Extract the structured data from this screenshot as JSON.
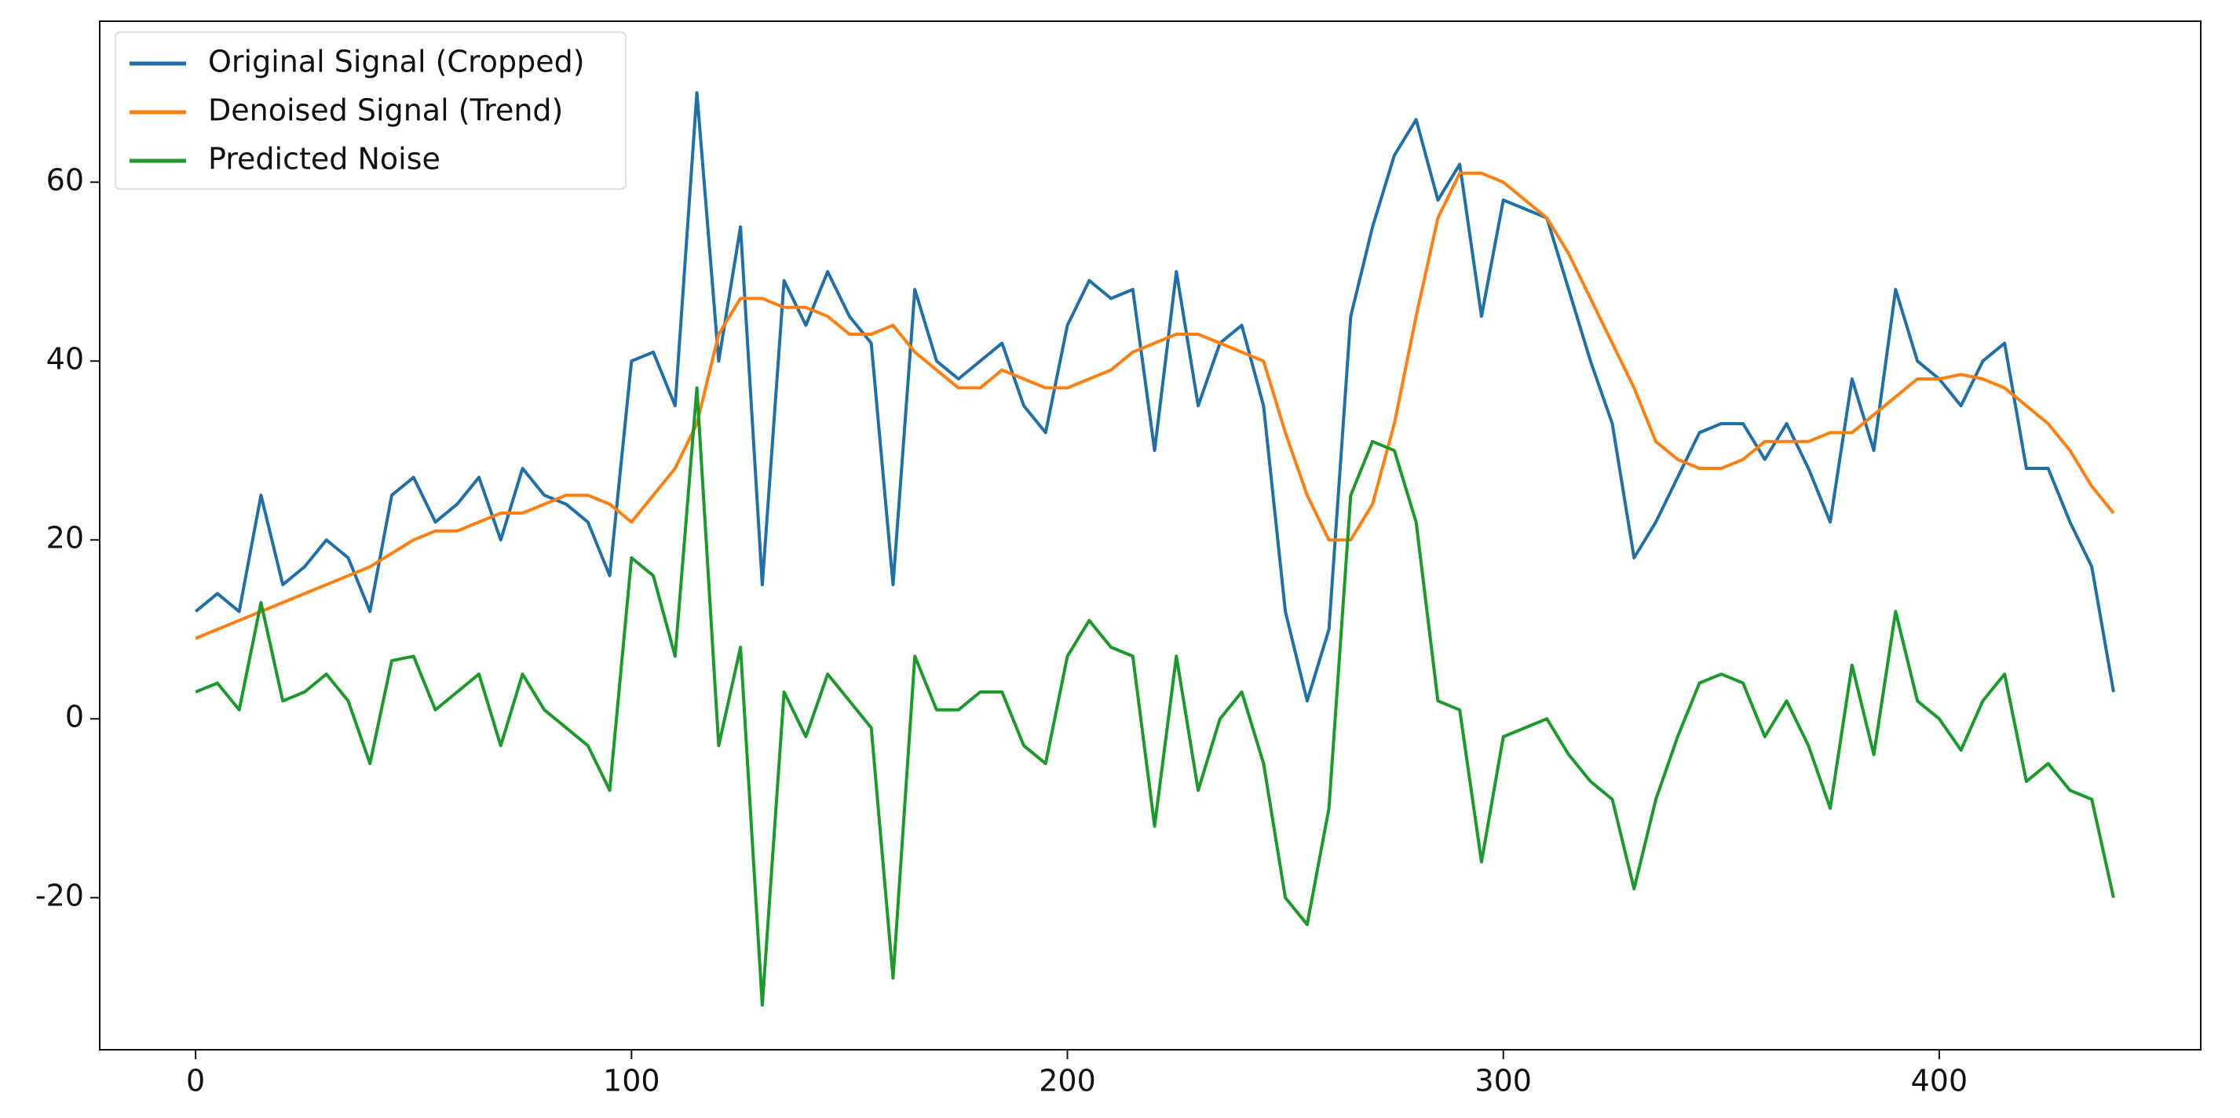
{
  "chart_data": {
    "type": "line",
    "x": [
      0,
      5,
      10,
      15,
      20,
      25,
      30,
      35,
      40,
      45,
      50,
      55,
      60,
      65,
      70,
      75,
      80,
      85,
      90,
      95,
      100,
      105,
      110,
      115,
      120,
      125,
      130,
      135,
      140,
      145,
      150,
      155,
      160,
      165,
      170,
      175,
      180,
      185,
      190,
      195,
      200,
      205,
      210,
      215,
      220,
      225,
      230,
      235,
      240,
      245,
      250,
      255,
      260,
      265,
      270,
      275,
      280,
      285,
      290,
      295,
      300,
      305,
      310,
      315,
      320,
      325,
      330,
      335,
      340,
      345,
      350,
      355,
      360,
      365,
      370,
      375,
      380,
      385,
      390,
      395,
      400,
      405,
      410,
      415,
      420,
      425,
      430,
      435,
      440
    ],
    "series": [
      {
        "name": "Original Signal (Cropped)",
        "color": "#1f6fa8",
        "values": [
          12,
          14,
          12,
          25,
          15,
          17,
          20,
          18,
          12,
          25,
          27,
          22,
          24,
          27,
          20,
          28,
          25,
          24,
          22,
          16,
          40,
          41,
          35,
          70,
          40,
          55,
          15,
          49,
          44,
          50,
          45,
          42,
          15,
          48,
          40,
          38,
          40,
          42,
          35,
          32,
          44,
          49,
          47,
          48,
          30,
          50,
          35,
          42,
          44,
          35,
          12,
          2,
          10,
          45,
          55,
          63,
          67,
          58,
          62,
          45,
          58,
          57,
          56,
          48,
          40,
          33,
          18,
          22,
          27,
          32,
          33,
          33,
          29,
          33,
          28,
          22,
          38,
          30,
          48,
          40,
          38,
          35,
          40,
          42,
          28,
          28,
          22,
          17,
          3
        ]
      },
      {
        "name": "Denoised Signal (Trend)",
        "color": "#ff7f0e",
        "values": [
          9,
          10,
          11,
          12,
          13,
          14,
          15,
          16,
          17,
          18.5,
          20,
          21,
          21,
          22,
          23,
          23,
          24,
          25,
          25,
          24,
          22,
          25,
          28,
          33,
          43,
          47,
          47,
          46,
          46,
          45,
          43,
          43,
          44,
          41,
          39,
          37,
          37,
          39,
          38,
          37,
          37,
          38,
          39,
          41,
          42,
          43,
          43,
          42,
          41,
          40,
          32,
          25,
          20,
          20,
          24,
          33,
          45,
          56,
          61,
          61,
          60,
          58,
          56,
          52,
          47,
          42,
          37,
          31,
          29,
          28,
          28,
          29,
          31,
          31,
          31,
          32,
          32,
          34,
          36,
          38,
          38,
          38.5,
          38,
          37,
          35,
          33,
          30,
          26,
          23
        ]
      },
      {
        "name": "Predicted Noise",
        "color": "#1a9a2a",
        "values": [
          3,
          4,
          1,
          13,
          2,
          3,
          5,
          2,
          -5,
          6.5,
          7,
          1,
          3,
          5,
          -3,
          5,
          1,
          -1,
          -3,
          -8,
          18,
          16,
          7,
          37,
          -3,
          8,
          -32,
          3,
          -2,
          5,
          2,
          -1,
          -29,
          7,
          1,
          1,
          3,
          3,
          -3,
          -5,
          7,
          11,
          8,
          7,
          -12,
          7,
          -8,
          0,
          3,
          -5,
          -20,
          -23,
          -10,
          25,
          31,
          30,
          22,
          2,
          1,
          -16,
          -2,
          -1,
          0,
          -4,
          -7,
          -9,
          -19,
          -9,
          -2,
          4,
          5,
          4,
          -2,
          2,
          -3,
          -10,
          6,
          -4,
          12,
          2,
          0,
          -3.5,
          2,
          5,
          -7,
          -5,
          -8,
          -9,
          -20
        ]
      }
    ],
    "xlim": [
      -22,
      460
    ],
    "xticks": [
      0,
      100,
      200,
      300,
      400
    ],
    "ylim": [
      -37,
      78
    ],
    "yticks": [
      -20,
      0,
      20,
      40,
      60
    ],
    "grid": false,
    "legend": "upper left"
  }
}
